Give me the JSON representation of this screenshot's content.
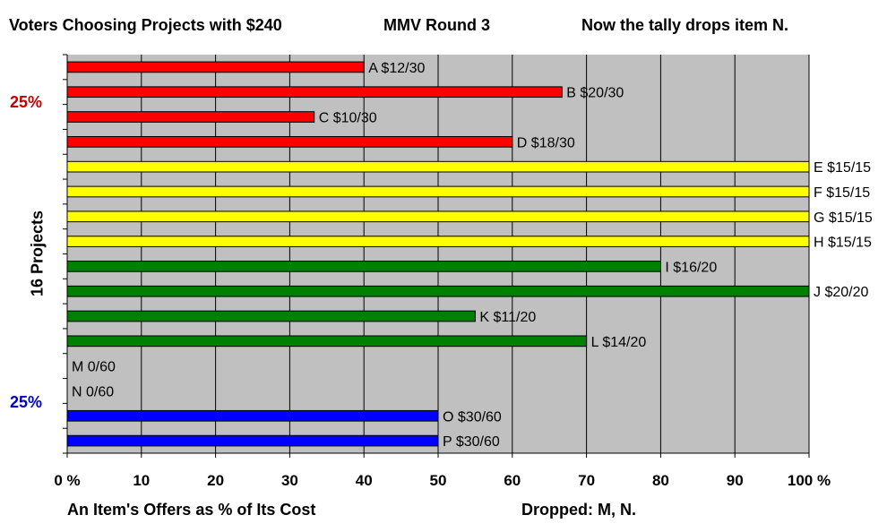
{
  "header": {
    "title": "Voters Choosing Projects with $240",
    "round": "MMV Round 3",
    "note": "Now the tally drops item N."
  },
  "side_labels": {
    "top_share": "25%",
    "bottom_share": "25%"
  },
  "footer": {
    "dropped": "Dropped: M, N."
  },
  "chart_data": {
    "type": "bar",
    "orientation": "horizontal",
    "title": "Voters Choosing Projects with $240",
    "xlabel": "An Item's Offers as % of Its Cost",
    "ylabel": "16 Projects",
    "xlim": [
      0,
      100
    ],
    "xticks": [
      "0 %",
      "10",
      "20",
      "30",
      "40",
      "50",
      "60",
      "70",
      "80",
      "90",
      "100 %"
    ],
    "grid": "vertical",
    "colors": {
      "plot_bg": "#c0c0c0",
      "red": "#ff0000",
      "yellow": "#ffff00",
      "green": "#008000",
      "blue": "#0000ff"
    },
    "bars": [
      {
        "label": "A $12/30",
        "value": 40,
        "color": "#ff0000"
      },
      {
        "label": "B $20/30",
        "value": 66.7,
        "color": "#ff0000"
      },
      {
        "label": "C $10/30",
        "value": 33.3,
        "color": "#ff0000"
      },
      {
        "label": "D $18/30",
        "value": 60,
        "color": "#ff0000"
      },
      {
        "label": "E $15/15",
        "value": 100,
        "color": "#ffff00"
      },
      {
        "label": "F $15/15",
        "value": 100,
        "color": "#ffff00"
      },
      {
        "label": "G $15/15",
        "value": 100,
        "color": "#ffff00"
      },
      {
        "label": "H $15/15",
        "value": 100,
        "color": "#ffff00"
      },
      {
        "label": "I $16/20",
        "value": 80,
        "color": "#008000"
      },
      {
        "label": "J $20/20",
        "value": 100,
        "color": "#008000"
      },
      {
        "label": "K $11/20",
        "value": 55,
        "color": "#008000"
      },
      {
        "label": "L $14/20",
        "value": 70,
        "color": "#008000"
      },
      {
        "label": "M 0/60",
        "value": 0,
        "color": "#0000ff"
      },
      {
        "label": "N 0/60",
        "value": 0,
        "color": "#0000ff"
      },
      {
        "label": "O $30/60",
        "value": 50,
        "color": "#0000ff"
      },
      {
        "label": "P $30/60",
        "value": 50,
        "color": "#0000ff"
      }
    ]
  }
}
